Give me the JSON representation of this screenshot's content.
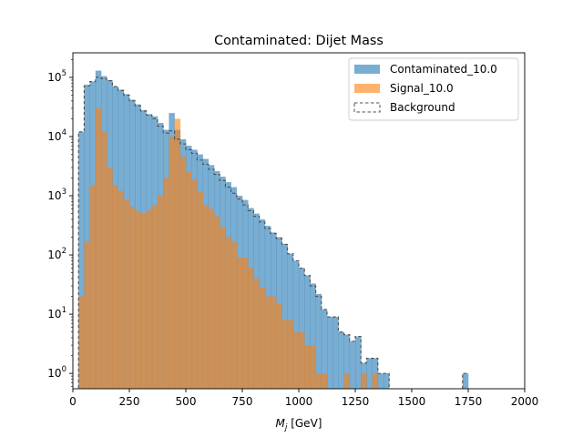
{
  "chart_data": {
    "type": "histogram",
    "title": "Contaminated: Dijet Mass",
    "xlabel_main": "M",
    "xlabel_sub": "j",
    "xlabel_unit": " [GeV]",
    "ylabel": "",
    "xscale": "linear",
    "yscale": "log",
    "xlim": [
      0,
      2000
    ],
    "ylim": [
      0.55,
      260000
    ],
    "grid": false,
    "legend_position": "upper right",
    "bin_width": 25,
    "xticks": [
      0,
      250,
      500,
      750,
      1000,
      1250,
      1500,
      1750,
      2000
    ],
    "xtick_labels": [
      "0",
      "250",
      "500",
      "750",
      "1000",
      "1250",
      "1500",
      "1750",
      "2000"
    ],
    "yticks": [
      1,
      10,
      100,
      1000,
      10000,
      100000
    ],
    "ytick_labels": [
      {
        "base": "10",
        "exp": "0"
      },
      {
        "base": "10",
        "exp": "1"
      },
      {
        "base": "10",
        "exp": "2"
      },
      {
        "base": "10",
        "exp": "3"
      },
      {
        "base": "10",
        "exp": "4"
      },
      {
        "base": "10",
        "exp": "5"
      }
    ],
    "series": [
      {
        "name": "Contaminated_10.0",
        "style": "filled",
        "color": "#1f77b4",
        "alpha": 0.6,
        "bin_edges_start": 0,
        "counts": [
          0,
          12000,
          75000,
          85000,
          130000,
          105000,
          90000,
          70000,
          62000,
          52000,
          42000,
          35000,
          28000,
          24000,
          22000,
          17000,
          13000,
          25000,
          13000,
          9000,
          7000,
          6000,
          5000,
          4200,
          3300,
          2600,
          2100,
          1700,
          1400,
          1000,
          850,
          620,
          500,
          400,
          310,
          240,
          200,
          155,
          105,
          80,
          60,
          45,
          33,
          22,
          12,
          9,
          9,
          5,
          4.5,
          3.5,
          4.2,
          1.5,
          1.8,
          1.8,
          1,
          1,
          0,
          0,
          0,
          0,
          0,
          0,
          0,
          0,
          0,
          0,
          0,
          0,
          0,
          1
        ]
      },
      {
        "name": "Signal_10.0",
        "style": "filled",
        "color": "#ff7f0e",
        "alpha": 0.6,
        "bin_edges_start": 0,
        "counts": [
          0,
          20,
          170,
          1500,
          30000,
          12000,
          3000,
          1500,
          1200,
          850,
          650,
          550,
          500,
          580,
          700,
          1000,
          2000,
          10000,
          20000,
          4600,
          2600,
          1850,
          1200,
          700,
          600,
          450,
          300,
          200,
          170,
          90,
          90,
          60,
          40,
          28,
          20,
          20,
          15,
          8,
          8,
          5,
          5,
          3,
          3,
          1,
          1,
          0,
          0,
          0,
          1,
          0,
          0,
          1,
          0,
          1,
          0,
          0
        ]
      },
      {
        "name": "Background",
        "style": "step-dashed",
        "color": "#505050",
        "bin_edges_start": 0,
        "counts": [
          0,
          12000,
          72000,
          85000,
          100000,
          95000,
          88000,
          70000,
          60000,
          50000,
          40000,
          33000,
          27000,
          23000,
          20000,
          15000,
          11500,
          12500,
          9000,
          7500,
          6000,
          5200,
          4000,
          3400,
          2800,
          2300,
          1800,
          1400,
          1100,
          880,
          700,
          560,
          450,
          360,
          280,
          230,
          190,
          150,
          105,
          80,
          60,
          45,
          30,
          20,
          12,
          9,
          9,
          5,
          4.5,
          3.5,
          4.2,
          1.5,
          1.8,
          1.8,
          1,
          1,
          0,
          0,
          0,
          0,
          0,
          0,
          0,
          0,
          0,
          0,
          0,
          0,
          0,
          1
        ]
      }
    ]
  }
}
